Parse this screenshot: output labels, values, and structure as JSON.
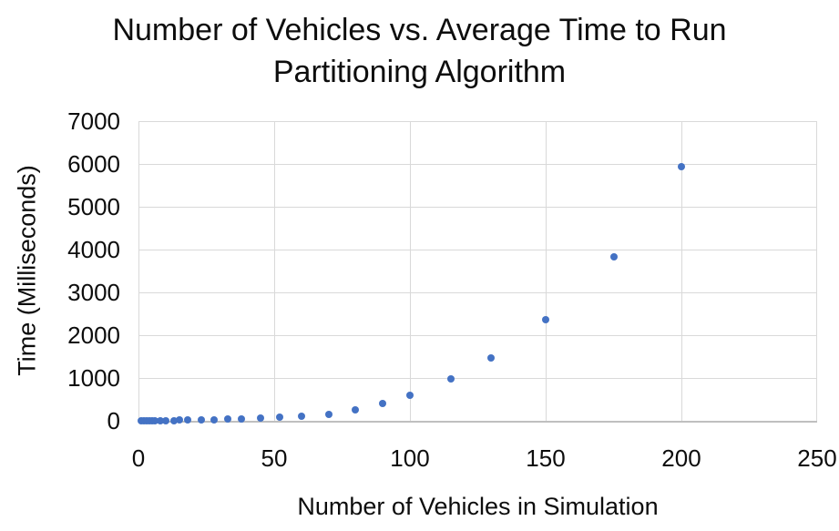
{
  "title": {
    "line1": "Number of Vehicles vs. Average Time to Run",
    "line2": "Partitioning Algorithm"
  },
  "colors": {
    "marker": "#4472C4",
    "gridline": "#D9D9D9",
    "axis_line": "#BFBFBF",
    "text": "#0d0d0d"
  },
  "chart_data": {
    "type": "scatter",
    "title": "Number of Vehicles vs. Average Time to Run Partitioning Algorithm",
    "xlabel": "Number of Vehicles in Simulation",
    "ylabel": "Time (Milliseconds)",
    "xlim": [
      0,
      250
    ],
    "ylim": [
      0,
      7000
    ],
    "x_ticks": [
      0,
      50,
      100,
      150,
      200,
      250
    ],
    "y_ticks": [
      0,
      1000,
      2000,
      3000,
      4000,
      5000,
      6000,
      7000
    ],
    "grid": true,
    "legend": false,
    "marker_color": "#4472C4",
    "points": [
      [
        1,
        2
      ],
      [
        2,
        2
      ],
      [
        3,
        3
      ],
      [
        4,
        3
      ],
      [
        5,
        4
      ],
      [
        6,
        5
      ],
      [
        8,
        6
      ],
      [
        10,
        8
      ],
      [
        13,
        10
      ],
      [
        15,
        12
      ],
      [
        18,
        15
      ],
      [
        23,
        20
      ],
      [
        28,
        25
      ],
      [
        33,
        32
      ],
      [
        38,
        45
      ],
      [
        45,
        65
      ],
      [
        52,
        85
      ],
      [
        60,
        105
      ],
      [
        70,
        150
      ],
      [
        80,
        255
      ],
      [
        90,
        405
      ],
      [
        100,
        600
      ],
      [
        115,
        980
      ],
      [
        130,
        1470
      ],
      [
        150,
        2360
      ],
      [
        175,
        3830
      ],
      [
        200,
        5930
      ]
    ]
  }
}
